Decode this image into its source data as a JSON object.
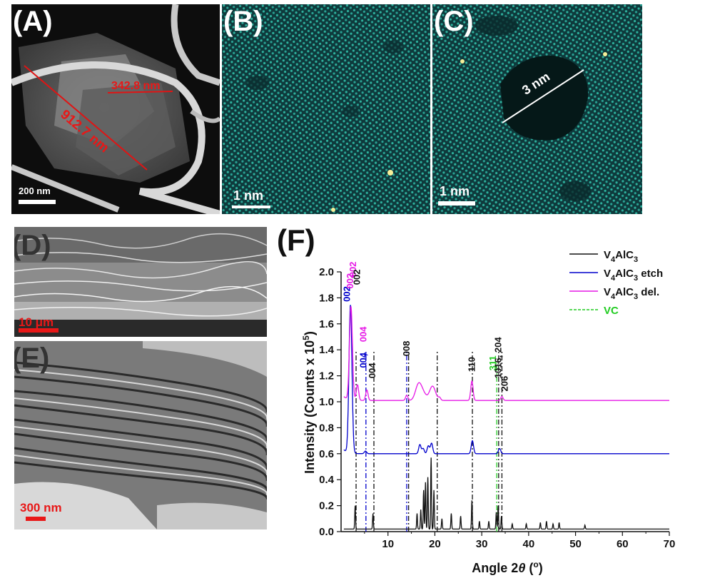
{
  "panels": {
    "A": {
      "label": "(A)",
      "scalebar": "200 nm",
      "measure1": "342.8 nm",
      "measure2": "912.7 nm"
    },
    "B": {
      "label": "(B)",
      "scalebar": "1 nm"
    },
    "C": {
      "label": "(C)",
      "scalebar": "1 nm",
      "pore": "3 nm"
    },
    "D": {
      "label": "(D)",
      "scalebar_num": "10 ",
      "scalebar_unit": "μm"
    },
    "E": {
      "label": "(E)",
      "scalebar": "300 nm"
    },
    "F": {
      "label": "(F)"
    }
  },
  "chart_data": {
    "type": "line",
    "xlabel_prefix": "Angle 2",
    "xlabel_theta": "θ",
    "xlabel_unit_open": " (",
    "xlabel_unit_sup": "o",
    "xlabel_unit_close": ")",
    "ylabel_main": "Intensity (Counts x 10",
    "ylabel_sup": "5",
    "ylabel_close": ")",
    "xlim": [
      0,
      70
    ],
    "ylim": [
      0,
      2.0
    ],
    "xticks": [
      10,
      20,
      30,
      40,
      50,
      60,
      70
    ],
    "yticks": [
      "0.0",
      "0.2",
      "0.4",
      "0.6",
      "0.8",
      "1.0",
      "1.2",
      "1.4",
      "1.6",
      "1.8",
      "2.0"
    ],
    "legend_position": "top-right",
    "colors": {
      "bulk": "#111111",
      "etch": "#0000cc",
      "del": "#e619e6",
      "vc": "#22cc22"
    },
    "legend": [
      {
        "pre": "V",
        "sub1": "4",
        "mid": "AlC",
        "sub2": "3",
        "post": "",
        "color": "#111111"
      },
      {
        "pre": "V",
        "sub1": "4",
        "mid": "AlC",
        "sub2": "3",
        "post": " etch",
        "color": "#0000cc"
      },
      {
        "pre": "V",
        "sub1": "4",
        "mid": "AlC",
        "sub2": "3",
        "post": " del.",
        "color": "#e619e6"
      },
      {
        "pre": "VC",
        "sub1": "",
        "mid": "",
        "sub2": "",
        "post": "",
        "color": "#22cc22",
        "dashed": true
      }
    ],
    "series": [
      {
        "name": "V4AlC3",
        "baseline": 0.02,
        "peaks": [
          [
            3.0,
            0.18
          ],
          [
            6.8,
            0.12
          ],
          [
            16.2,
            0.12
          ],
          [
            17.0,
            0.15
          ],
          [
            17.6,
            0.3
          ],
          [
            18.0,
            0.36
          ],
          [
            18.5,
            0.4
          ],
          [
            19.2,
            0.55
          ],
          [
            19.8,
            0.3
          ],
          [
            21.5,
            0.08
          ],
          [
            23.5,
            0.12
          ],
          [
            25.5,
            0.1
          ],
          [
            27.9,
            0.22
          ],
          [
            29.5,
            0.06
          ],
          [
            31.5,
            0.06
          ],
          [
            33.1,
            0.13
          ],
          [
            33.5,
            0.18
          ],
          [
            34.2,
            0.1
          ],
          [
            36.5,
            0.04
          ],
          [
            39.5,
            0.04
          ],
          [
            42.5,
            0.05
          ],
          [
            43.8,
            0.06
          ],
          [
            45.2,
            0.04
          ],
          [
            46.5,
            0.05
          ],
          [
            52.0,
            0.03
          ]
        ]
      },
      {
        "name": "V4AlC3 etch",
        "baseline": 0.6,
        "peaks": [
          [
            2.0,
            1.14
          ],
          [
            5.2,
            0.02
          ],
          [
            16.8,
            0.07
          ],
          [
            17.5,
            0.04
          ],
          [
            18.6,
            0.06
          ],
          [
            19.3,
            0.08
          ],
          [
            28.0,
            0.1
          ],
          [
            33.8,
            0.04
          ]
        ]
      },
      {
        "name": "V4AlC3 del.",
        "baseline": 1.01,
        "peaks": [
          [
            2.1,
            0.72
          ],
          [
            3.5,
            0.12
          ],
          [
            5.5,
            0.08
          ],
          [
            14.0,
            0.04
          ],
          [
            16.5,
            0.12
          ],
          [
            17.5,
            0.05
          ],
          [
            19.5,
            0.11
          ],
          [
            21.0,
            0.02
          ],
          [
            27.9,
            0.15
          ],
          [
            34.3,
            0.03
          ]
        ]
      }
    ],
    "annotations": [
      {
        "text": "002",
        "x": 1.9,
        "y": 1.77,
        "color": "#0000cc",
        "vertical": true
      },
      {
        "text": "002",
        "x": 2.6,
        "y": 1.87,
        "color": "#e619e6",
        "vertical": true
      },
      {
        "text": ",",
        "x": 2.6,
        "y": 1.963,
        "color": "#e619e6",
        "vertical": true
      },
      {
        "text": "002",
        "x": 3.2,
        "y": 1.96,
        "color": "#e619e6",
        "vertical": true
      },
      {
        "text": "002",
        "x": 4.0,
        "y": 1.9,
        "color": "#111111",
        "vertical": true
      },
      {
        "text": "004",
        "x": 5.4,
        "y": 1.26,
        "color": "#0000cc",
        "vertical": true
      },
      {
        "text": ",",
        "x": 5.4,
        "y": 1.35,
        "color": "#0000cc",
        "vertical": true
      },
      {
        "text": "004",
        "x": 5.4,
        "y": 1.46,
        "color": "#e619e6",
        "vertical": true
      },
      {
        "text": "004",
        "x": 7.3,
        "y": 1.18,
        "color": "#111111",
        "vertical": true
      },
      {
        "text": "008",
        "x": 14.6,
        "y": 1.35,
        "color": "#111111",
        "vertical": true
      },
      {
        "text": "110",
        "x": 28.5,
        "y": 1.23,
        "color": "#111111",
        "vertical": true
      },
      {
        "text": "311",
        "x": 33.0,
        "y": 1.24,
        "color": "#22cc22",
        "vertical": true
      },
      {
        "text": "1016, 204",
        "x": 34.2,
        "y": 1.18,
        "color": "#111111",
        "vertical": true
      },
      {
        "text": "206",
        "x": 35.5,
        "y": 1.08,
        "color": "#111111",
        "vertical": true
      }
    ],
    "reflines": [
      {
        "x": 3.2,
        "color": "#111111"
      },
      {
        "x": 5.3,
        "color": "#0000cc"
      },
      {
        "x": 7.0,
        "color": "#111111"
      },
      {
        "x": 14.0,
        "color": "#0000cc"
      },
      {
        "x": 14.4,
        "color": "#111111"
      },
      {
        "x": 20.5,
        "color": "#111111"
      },
      {
        "x": 28.0,
        "color": "#111111"
      },
      {
        "x": 33.2,
        "color": "#22cc22"
      },
      {
        "x": 33.6,
        "color": "#111111"
      },
      {
        "x": 34.3,
        "color": "#111111"
      }
    ]
  }
}
